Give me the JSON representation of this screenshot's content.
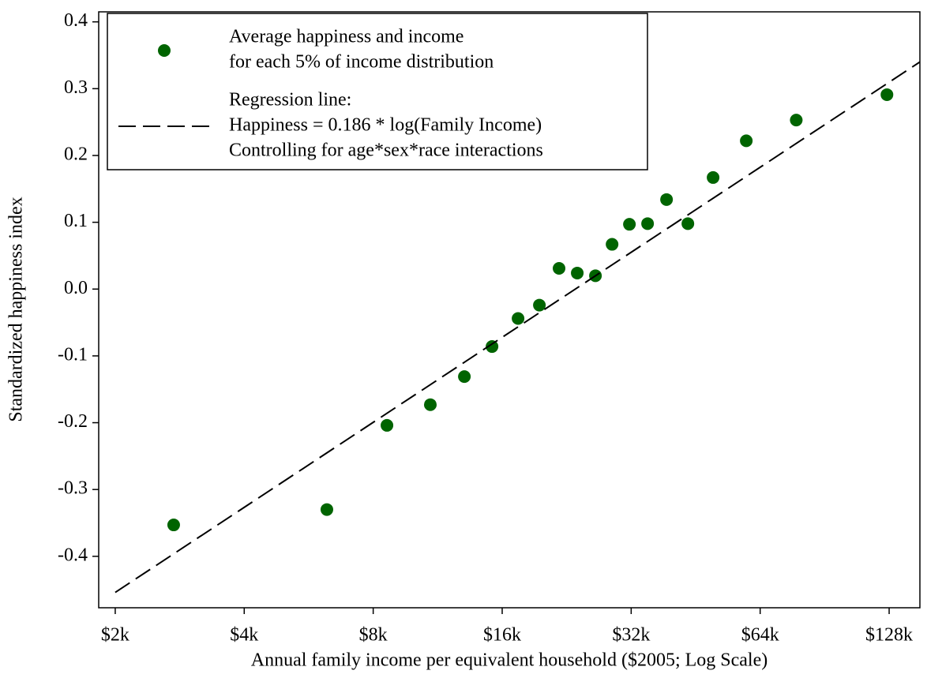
{
  "chart_data": {
    "type": "scatter",
    "x_label": "Annual family income per equivalent household ($2005; Log Scale)",
    "y_label": "Standardized happiness index",
    "x_log": true,
    "xlim": [
      1830,
      151000
    ],
    "ylim": [
      -0.477,
      0.415
    ],
    "xticks": [
      {
        "value": 2000,
        "label": "$2k"
      },
      {
        "value": 4000,
        "label": "$4k"
      },
      {
        "value": 8000,
        "label": "$8k"
      },
      {
        "value": 16000,
        "label": "$16k"
      },
      {
        "value": 32000,
        "label": "$32k"
      },
      {
        "value": 64000,
        "label": "$64k"
      },
      {
        "value": 128000,
        "label": "$128k"
      }
    ],
    "yticks": [
      0.4,
      0.3,
      0.2,
      0.1,
      {
        "value": 0,
        "label": "0.0"
      },
      -0.1,
      -0.2,
      -0.3,
      -0.4
    ],
    "legend": "upper left",
    "series": [
      {
        "name": [
          "Average happiness and income",
          "for each 5% of income distribution"
        ],
        "kind": "points",
        "color": "#006400",
        "x": [
          2738,
          6237,
          8614,
          10875,
          13057,
          15150,
          17425,
          19540,
          21720,
          23950,
          26410,
          28880,
          31700,
          34950,
          38700,
          43400,
          49700,
          59400,
          77700,
          126500
        ],
        "values": [
          -0.353,
          -0.33,
          -0.204,
          -0.173,
          -0.131,
          -0.086,
          -0.044,
          -0.024,
          0.031,
          0.024,
          0.02,
          0.067,
          0.097,
          0.098,
          0.134,
          0.098,
          0.167,
          0.222,
          0.253,
          0.291
        ]
      },
      {
        "name": [
          "Regression line:",
          "Happiness = 0.186 * log(Family Income)",
          "Controlling for age*sex*race interactions"
        ],
        "kind": "dashed-line",
        "color": "#000000",
        "x": [
          2000,
          151000
        ],
        "values": [
          -0.454,
          0.34
        ]
      }
    ]
  }
}
